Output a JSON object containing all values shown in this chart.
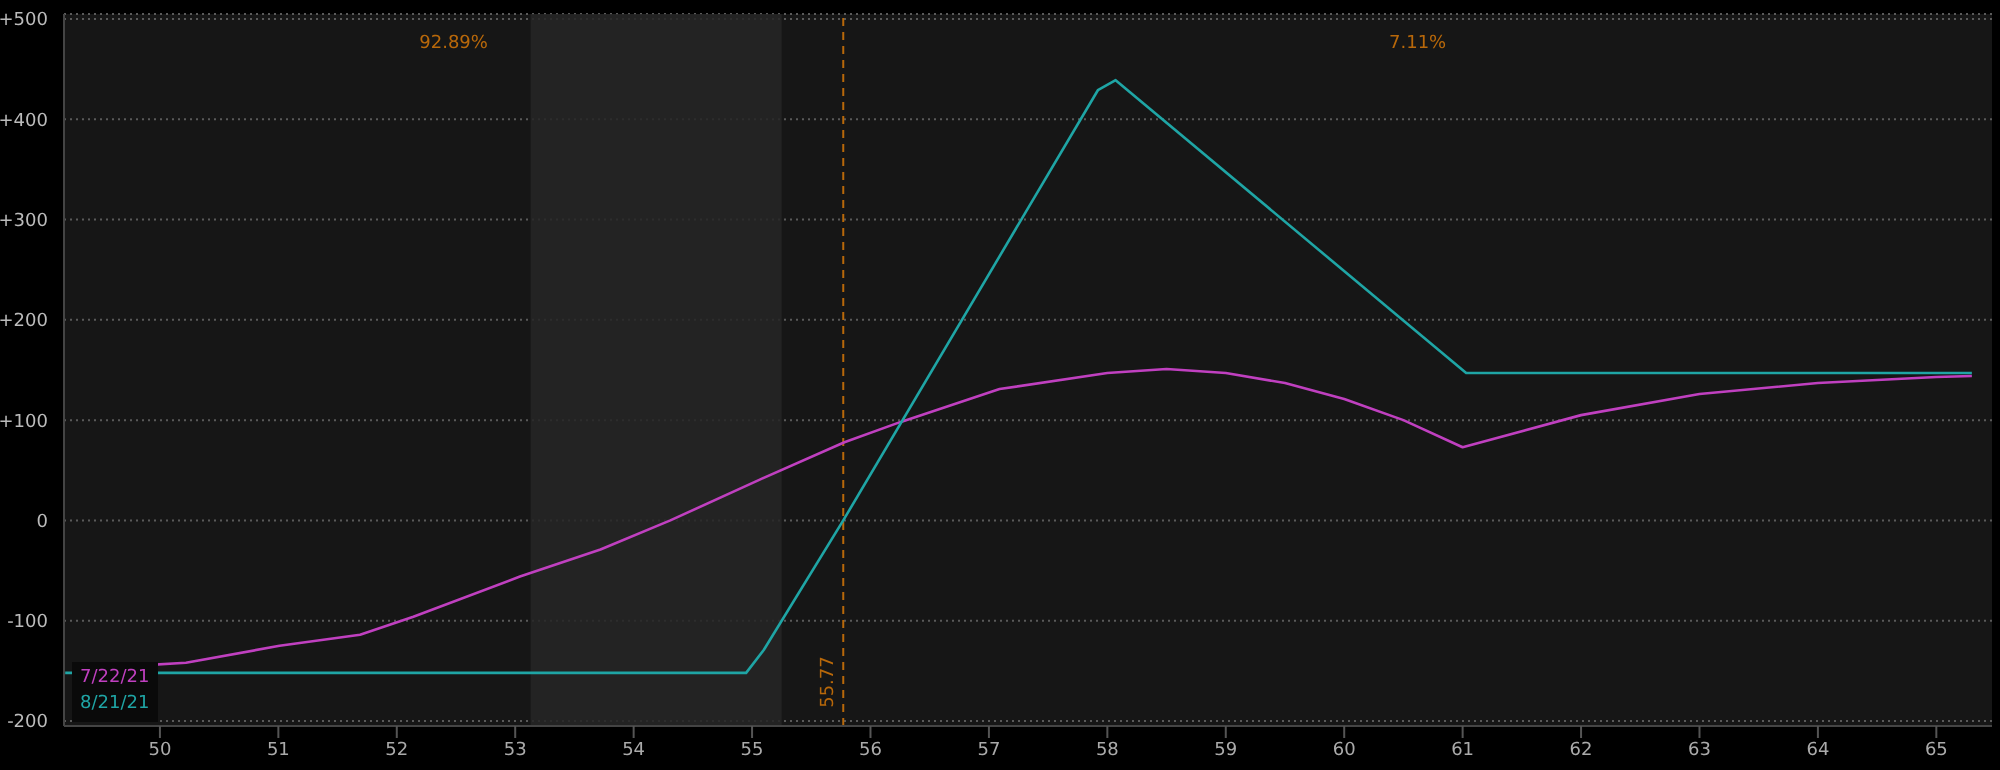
{
  "chart_data": {
    "type": "line",
    "annotations": [
      "92.89%",
      "7.11%"
    ],
    "series": [
      {
        "name": "7/22/21",
        "color": "#c040c0",
        "x": [
          49.78,
          50.22,
          51.01,
          51.69,
          52.14,
          53.04,
          53.72,
          54.31,
          55.07,
          55.78,
          56.25,
          57.09,
          58,
          58.5,
          59,
          59.5,
          60,
          60.5,
          61,
          62,
          63,
          64,
          65,
          65.3
        ],
        "values": [
          -145,
          -142,
          -125,
          -114,
          -96,
          -56,
          -29,
          0,
          41,
          78,
          98,
          131,
          147,
          151,
          147,
          137,
          121,
          100,
          73,
          105,
          126,
          137,
          143,
          144
        ]
      },
      {
        "name": "8/21/21",
        "color": "#1fa5a5",
        "x": [
          49.2,
          54.95,
          55.1,
          55.77,
          57.92,
          58.07,
          61.03,
          65.3
        ],
        "values": [
          -152,
          -152,
          -129,
          0,
          429,
          439,
          147,
          147
        ]
      }
    ],
    "xlim": [
      49.19,
      65.47
    ],
    "xticks": [
      50,
      51,
      52,
      53,
      54,
      55,
      56,
      57,
      58,
      59,
      60,
      61,
      62,
      63,
      64,
      65
    ],
    "ylim": [
      -205,
      505
    ],
    "yticks": [
      {
        "value": 500,
        "label": "+500"
      },
      {
        "value": 400,
        "label": "+400"
      },
      {
        "value": 300,
        "label": "+300"
      },
      {
        "value": 200,
        "label": "+200"
      },
      {
        "value": 100,
        "label": "+100"
      },
      0,
      -100,
      -200
    ],
    "grid": "y",
    "legend": "bottom left",
    "marker": "none",
    "line_style": "solid",
    "bands": [
      {
        "axis": "x",
        "from": 53.13,
        "to": 55.25,
        "color": "#262626"
      }
    ],
    "ref_lines": [
      {
        "axis": "x",
        "value": 55.77,
        "label": "55.77",
        "color": "#b8680a",
        "line_style": "dashed"
      }
    ]
  }
}
